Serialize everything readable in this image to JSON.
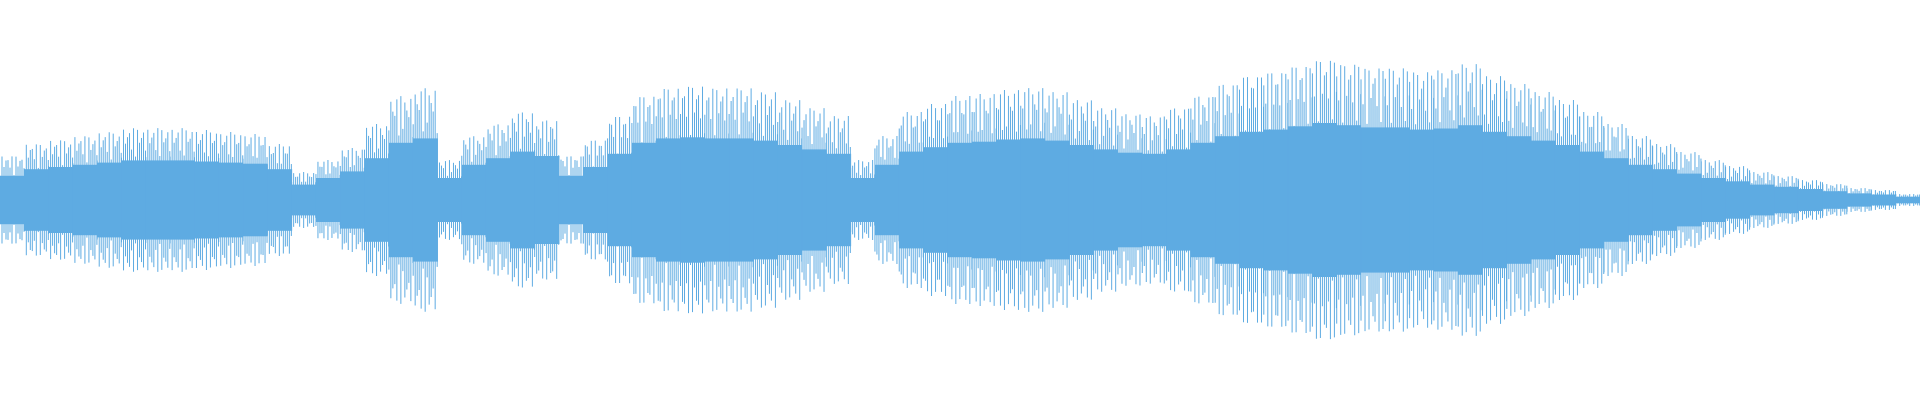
{
  "chart_data": {
    "type": "waveform",
    "color": "#5eabe2",
    "ylim": [
      -1,
      1
    ],
    "values": [
      0.22,
      0.28,
      0.3,
      0.32,
      0.34,
      0.36,
      0.36,
      0.36,
      0.35,
      0.34,
      0.33,
      0.28,
      0.14,
      0.2,
      0.26,
      0.38,
      0.52,
      0.56,
      0.2,
      0.32,
      0.38,
      0.44,
      0.4,
      0.22,
      0.3,
      0.42,
      0.52,
      0.56,
      0.57,
      0.56,
      0.56,
      0.54,
      0.5,
      0.46,
      0.42,
      0.2,
      0.32,
      0.44,
      0.48,
      0.52,
      0.53,
      0.55,
      0.56,
      0.54,
      0.5,
      0.46,
      0.43,
      0.42,
      0.46,
      0.52,
      0.58,
      0.62,
      0.64,
      0.67,
      0.7,
      0.68,
      0.66,
      0.66,
      0.64,
      0.65,
      0.68,
      0.62,
      0.58,
      0.54,
      0.5,
      0.44,
      0.38,
      0.32,
      0.28,
      0.24,
      0.2,
      0.17,
      0.14,
      0.12,
      0.1,
      0.08,
      0.06,
      0.05,
      0.03
    ]
  }
}
